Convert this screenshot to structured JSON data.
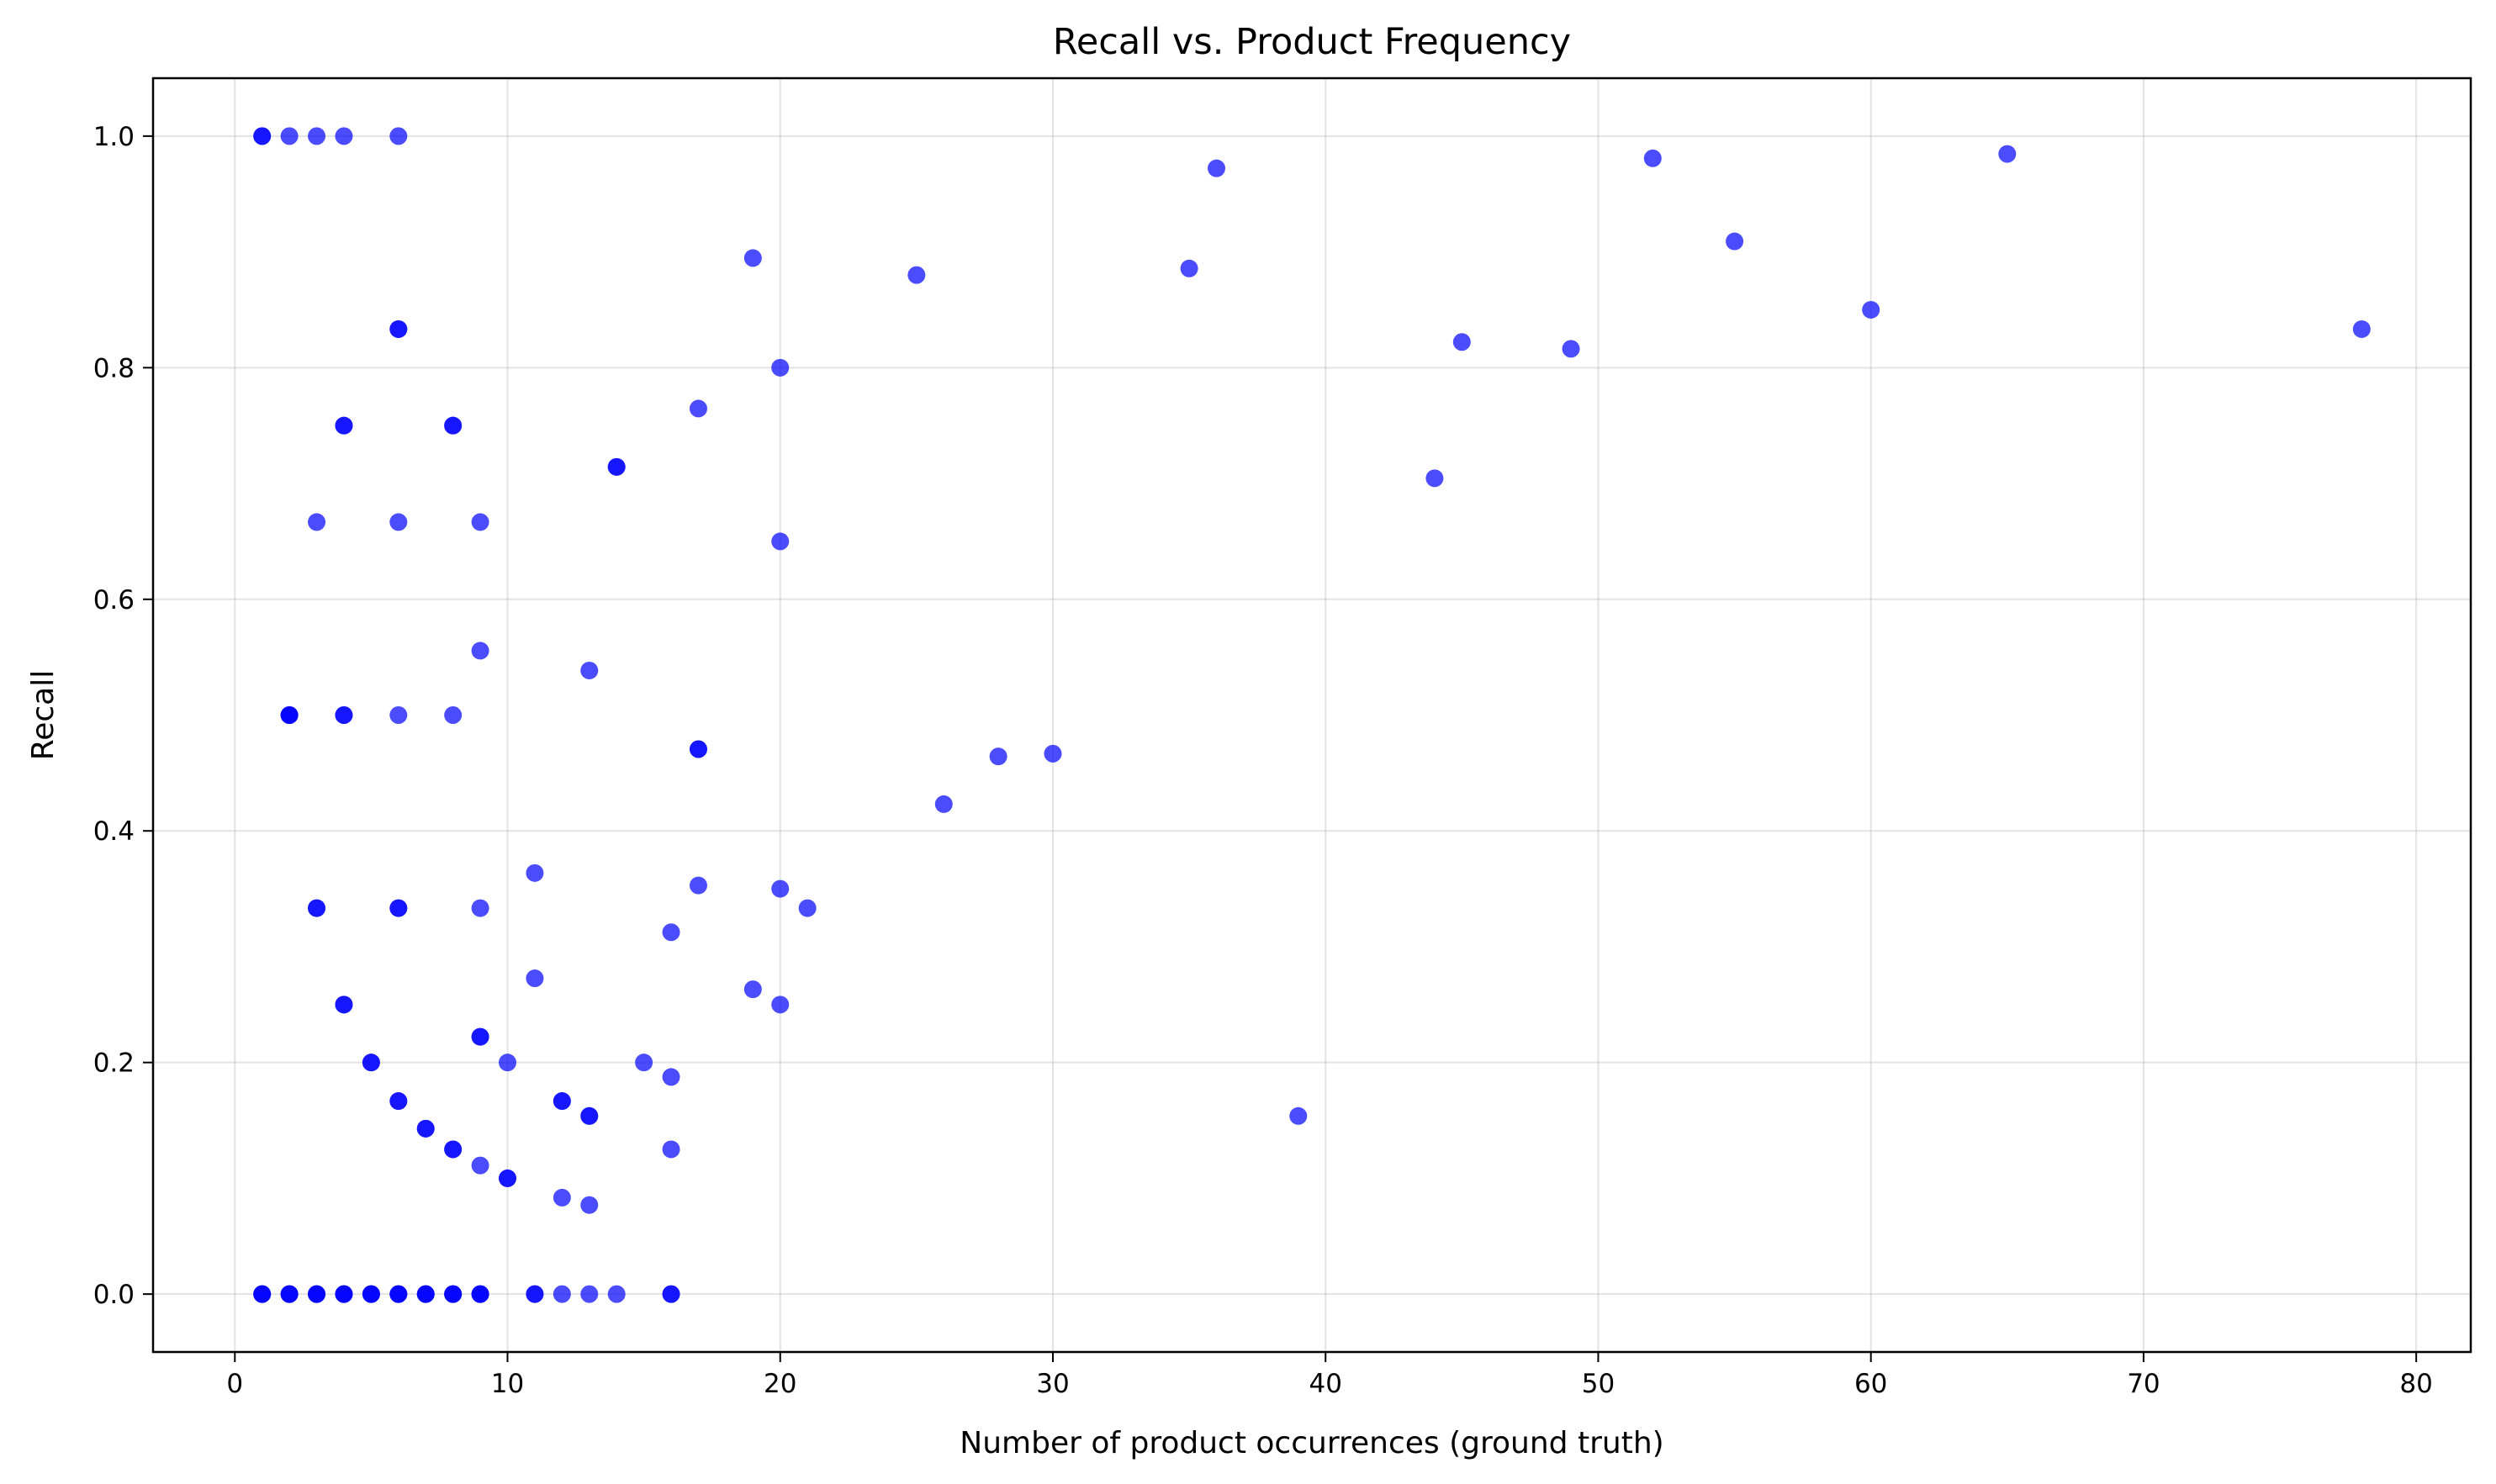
{
  "chart_data": {
    "type": "scatter",
    "title": "Recall vs. Product Frequency",
    "xlabel": "Number of product occurrences (ground truth)",
    "ylabel": "Recall",
    "xlim": [
      -3,
      82
    ],
    "ylim": [
      -0.05,
      1.05
    ],
    "x_ticks": [
      0,
      10,
      20,
      30,
      40,
      50,
      60,
      70,
      80
    ],
    "x_tick_labels": [
      "0",
      "10",
      "20",
      "30",
      "40",
      "50",
      "60",
      "70",
      "80"
    ],
    "y_ticks": [
      0.0,
      0.2,
      0.4,
      0.6,
      0.8,
      1.0
    ],
    "y_tick_labels": [
      "0.0",
      "0.2",
      "0.4",
      "0.6",
      "0.8",
      "1.0"
    ],
    "grid": true,
    "marker_color": "#0000ff",
    "marker_alpha": 0.7,
    "points": [
      [
        1,
        1.0
      ],
      [
        1,
        1.0
      ],
      [
        2,
        1.0
      ],
      [
        3,
        1.0
      ],
      [
        4,
        1.0
      ],
      [
        6,
        1.0
      ],
      [
        6,
        0.8333
      ],
      [
        6,
        0.8333
      ],
      [
        4,
        0.75
      ],
      [
        4,
        0.75
      ],
      [
        8,
        0.75
      ],
      [
        8,
        0.75
      ],
      [
        14,
        0.7143
      ],
      [
        14,
        0.7143
      ],
      [
        3,
        0.6667
      ],
      [
        6,
        0.6667
      ],
      [
        9,
        0.6667
      ],
      [
        9,
        0.5556
      ],
      [
        13,
        0.5385
      ],
      [
        2,
        0.5
      ],
      [
        2,
        0.5
      ],
      [
        2,
        0.5
      ],
      [
        4,
        0.5
      ],
      [
        4,
        0.5
      ],
      [
        6,
        0.5
      ],
      [
        8,
        0.5
      ],
      [
        17,
        0.4706
      ],
      [
        17,
        0.4706
      ],
      [
        3,
        0.3333
      ],
      [
        3,
        0.3333
      ],
      [
        6,
        0.3333
      ],
      [
        6,
        0.3333
      ],
      [
        9,
        0.3333
      ],
      [
        11,
        0.3636
      ],
      [
        11,
        0.2727
      ],
      [
        4,
        0.25
      ],
      [
        4,
        0.25
      ],
      [
        5,
        0.2
      ],
      [
        5,
        0.2
      ],
      [
        10,
        0.2
      ],
      [
        9,
        0.2222
      ],
      [
        9,
        0.2222
      ],
      [
        6,
        0.1667
      ],
      [
        6,
        0.1667
      ],
      [
        7,
        0.1429
      ],
      [
        7,
        0.1429
      ],
      [
        8,
        0.125
      ],
      [
        8,
        0.125
      ],
      [
        9,
        0.1111
      ],
      [
        10,
        0.1
      ],
      [
        10,
        0.1
      ],
      [
        12,
        0.1667
      ],
      [
        12,
        0.1667
      ],
      [
        13,
        0.1538
      ],
      [
        13,
        0.1538
      ],
      [
        12,
        0.0833
      ],
      [
        13,
        0.0769
      ],
      [
        15,
        0.2
      ],
      [
        16,
        0.1875
      ],
      [
        16,
        0.125
      ],
      [
        16,
        0.3125
      ],
      [
        17,
        0.7647
      ],
      [
        17,
        0.3529
      ],
      [
        19,
        0.8947
      ],
      [
        19,
        0.2632
      ],
      [
        20,
        0.8
      ],
      [
        20,
        0.65
      ],
      [
        20,
        0.35
      ],
      [
        20,
        0.25
      ],
      [
        21,
        0.3333
      ],
      [
        25,
        0.88
      ],
      [
        26,
        0.4231
      ],
      [
        28,
        0.4643
      ],
      [
        30,
        0.4667
      ],
      [
        35,
        0.8857
      ],
      [
        36,
        0.9722
      ],
      [
        39,
        0.1538
      ],
      [
        44,
        0.7045
      ],
      [
        45,
        0.8222
      ],
      [
        49,
        0.8163
      ],
      [
        52,
        0.9808
      ],
      [
        55,
        0.9091
      ],
      [
        60,
        0.85
      ],
      [
        65,
        0.9846
      ],
      [
        78,
        0.8333
      ],
      [
        1,
        0.0
      ],
      [
        1,
        0.0
      ],
      [
        1,
        0.0
      ],
      [
        2,
        0.0
      ],
      [
        2,
        0.0
      ],
      [
        2,
        0.0
      ],
      [
        3,
        0.0
      ],
      [
        3,
        0.0
      ],
      [
        3,
        0.0
      ],
      [
        4,
        0.0
      ],
      [
        4,
        0.0
      ],
      [
        4,
        0.0
      ],
      [
        5,
        0.0
      ],
      [
        5,
        0.0
      ],
      [
        5,
        0.0
      ],
      [
        6,
        0.0
      ],
      [
        6,
        0.0
      ],
      [
        6,
        0.0
      ],
      [
        7,
        0.0
      ],
      [
        7,
        0.0
      ],
      [
        7,
        0.0
      ],
      [
        8,
        0.0
      ],
      [
        8,
        0.0
      ],
      [
        8,
        0.0
      ],
      [
        9,
        0.0
      ],
      [
        9,
        0.0
      ],
      [
        9,
        0.0
      ],
      [
        11,
        0.0
      ],
      [
        11,
        0.0
      ],
      [
        12,
        0.0
      ],
      [
        13,
        0.0
      ],
      [
        14,
        0.0
      ],
      [
        16,
        0.0
      ],
      [
        16,
        0.0
      ]
    ]
  }
}
